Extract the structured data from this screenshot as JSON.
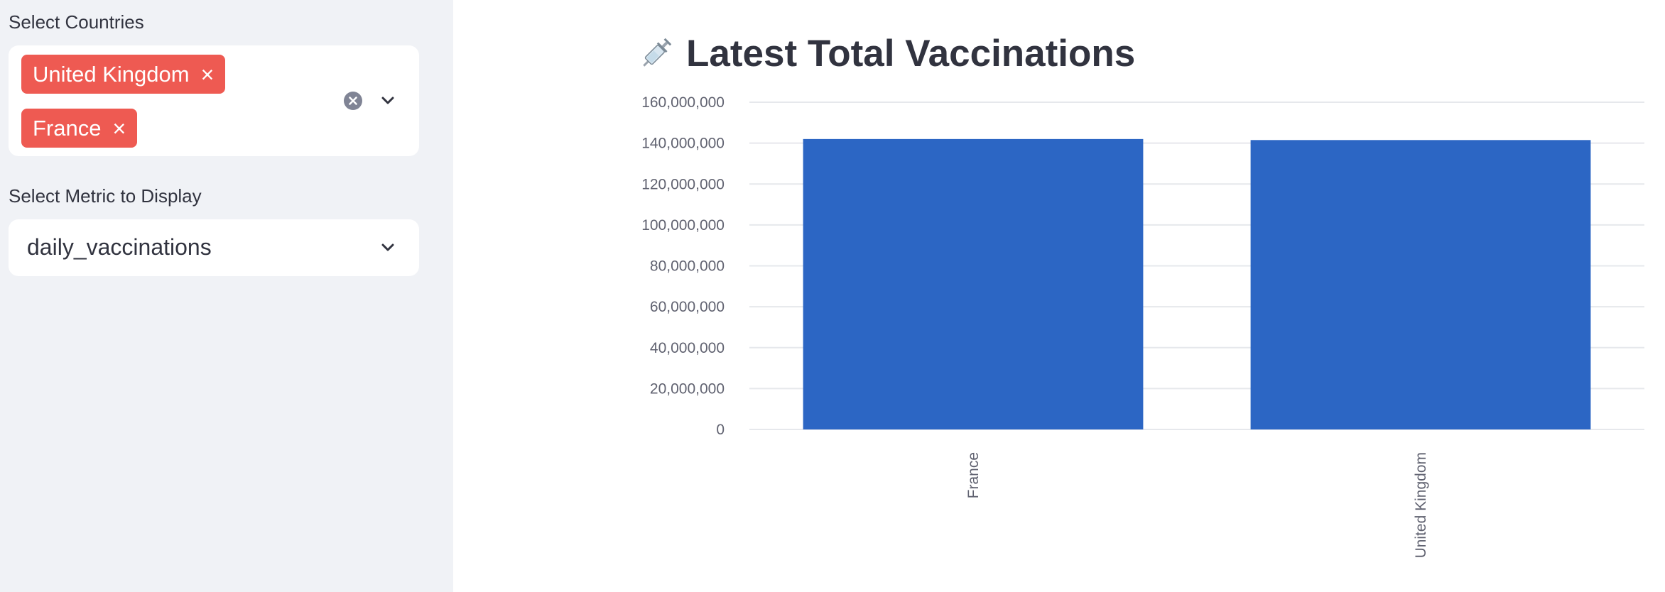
{
  "sidebar": {
    "countries_label": "Select Countries",
    "selected_countries": [
      "United Kingdom",
      "France"
    ],
    "remove_glyph": "×",
    "metric_label": "Select Metric to Display",
    "metric_value": "daily_vaccinations"
  },
  "main": {
    "title": "Latest Total Vaccinations",
    "title_icon": "syringe-icon"
  },
  "colors": {
    "sidebar_bg": "#f0f2f6",
    "tag_bg": "#ee5a52",
    "bar": "#2c66c4",
    "text": "#31333f"
  },
  "chart_data": {
    "type": "bar",
    "categories": [
      "France",
      "United Kingdom"
    ],
    "values": [
      142000000,
      141500000
    ],
    "ylim": [
      0,
      160000000
    ],
    "yticks": [
      0,
      20000000,
      40000000,
      60000000,
      80000000,
      100000000,
      120000000,
      140000000,
      160000000
    ],
    "ytick_labels": [
      "0",
      "20,000,000",
      "40,000,000",
      "60,000,000",
      "80,000,000",
      "100,000,000",
      "120,000,000",
      "140,000,000",
      "160,000,000"
    ],
    "xlabel": "",
    "ylabel": "",
    "grid": true,
    "legend": false
  }
}
